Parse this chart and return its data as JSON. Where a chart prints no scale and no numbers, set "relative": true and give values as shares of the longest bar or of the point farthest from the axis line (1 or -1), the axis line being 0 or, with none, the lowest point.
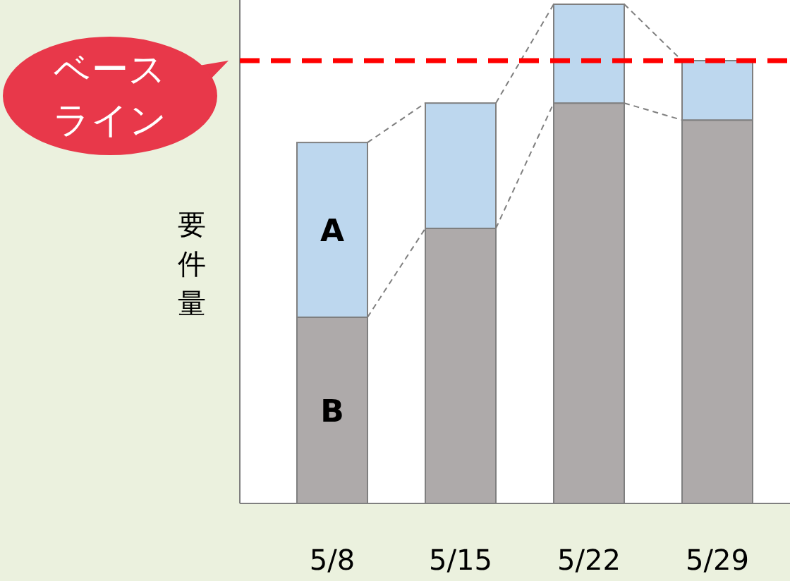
{
  "chart_data": {
    "type": "bar",
    "stacked": true,
    "relative": true,
    "ylabel": "要件量",
    "categories": [
      "5/8",
      "5/15",
      "5/22",
      "5/29"
    ],
    "series": [
      {
        "name": "B",
        "color": "#aeaaaa",
        "values": [
          0.373,
          0.551,
          0.802,
          0.768
        ]
      },
      {
        "name": "A",
        "color": "#bdd7ee",
        "values": [
          0.35,
          0.251,
          0.198,
          0.119
        ]
      }
    ],
    "ref_lines": [
      {
        "axis": "y",
        "value": 0.887,
        "label": "ベースライン",
        "color": "#ff0000",
        "line_style": "dashed"
      }
    ],
    "legend": false,
    "grid": false
  }
}
